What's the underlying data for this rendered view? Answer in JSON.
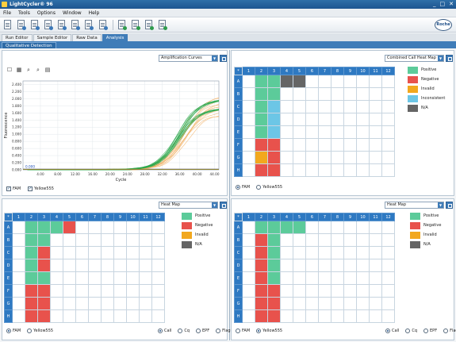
{
  "titlebar": {
    "title": "LightCycler® 96",
    "min": "_",
    "max": "□",
    "close": "✕"
  },
  "menu": [
    "File",
    "Tools",
    "Options",
    "Window",
    "Help"
  ],
  "brand": "Roche",
  "module_tabs": [
    "Run Editor",
    "Sample Editor",
    "Raw Data",
    "Analysis"
  ],
  "active_module": "Analysis",
  "sub_tab": "Qualitative Detection",
  "colors": {
    "positive": "#5ccb9a",
    "negative": "#e8524c",
    "invalid": "#f2a81e",
    "inconsistent": "#6cc6e6",
    "na": "#656565",
    "header": "#2e79c2"
  },
  "chart_panel": {
    "dropdown": "Amplification Curves",
    "tools": [
      "☐",
      "▦",
      "⌕",
      "⌕",
      "▤"
    ],
    "checkbox_fam": "FAM",
    "checkbox_yellow": "Yellow555"
  },
  "chart_data": {
    "type": "line",
    "xlabel": "Cycle",
    "ylabel": "Fluorescence",
    "xlim": [
      0,
      45
    ],
    "ylim": [
      0,
      2.5
    ],
    "xticks": [
      "4.00",
      "8.00",
      "12.00",
      "16.00",
      "20.00",
      "24.00",
      "28.00",
      "32.00",
      "36.00",
      "40.00",
      "44.00"
    ],
    "yticks": [
      "0.000",
      "0.200",
      "0.400",
      "0.600",
      "0.800",
      "1.000",
      "1.200",
      "1.400",
      "1.600",
      "1.800",
      "2.000",
      "2.200",
      "2.400"
    ],
    "threshold_label": "0.000",
    "curve_count_green": 14,
    "curve_count_orange": 12,
    "series": [
      {
        "name": "FAM",
        "color": "#2fa84f",
        "plateau_range": [
          1.55,
          2.05
        ],
        "midpoint_range": [
          35.3,
          36.2
        ]
      },
      {
        "name": "Yellow555",
        "color": "#f2b46a",
        "plateau_range": [
          1.55,
          2.15
        ],
        "midpoint_range": [
          36.0,
          37.8
        ]
      }
    ]
  },
  "plate_cols": [
    "*",
    "1",
    "2",
    "3",
    "4",
    "5",
    "6",
    "7",
    "8",
    "9",
    "10",
    "11",
    "12"
  ],
  "plate_rows": [
    "A",
    "B",
    "C",
    "D",
    "E",
    "F",
    "G",
    "H"
  ],
  "panel_top_right": {
    "dropdown": "Combined Call Heat Map",
    "wells": {
      "A": {
        "2": "positive",
        "3": "positive",
        "4": "na",
        "5": "na"
      },
      "B": {
        "2": "positive",
        "3": "positive"
      },
      "C": {
        "2": "positive",
        "3": "inconsistent"
      },
      "D": {
        "2": "positive",
        "3": "inconsistent"
      },
      "E": {
        "2": "positive",
        "3": "inconsistent"
      },
      "F": {
        "2": "negative",
        "3": "negative"
      },
      "G": {
        "2": "invalid",
        "3": "negative"
      },
      "H": {
        "2": "negative",
        "3": "negative"
      }
    },
    "legend": [
      {
        "key": "positive",
        "label": "Positive"
      },
      {
        "key": "negative",
        "label": "Negative"
      },
      {
        "key": "invalid",
        "label": "Invalid"
      },
      {
        "key": "inconsistent",
        "label": "Inconsistent"
      },
      {
        "key": "na",
        "label": "N/A"
      }
    ],
    "radio_fam": "FAM",
    "radio_yellow": "Yellow555",
    "selected": "FAM"
  },
  "panel_bottom_left": {
    "dropdown": "Heat Map",
    "wells": {
      "A": {
        "2": "positive",
        "3": "positive",
        "4": "positive",
        "5": "negative"
      },
      "B": {
        "2": "positive",
        "3": "positive"
      },
      "C": {
        "2": "positive",
        "3": "negative"
      },
      "D": {
        "2": "positive",
        "3": "negative"
      },
      "E": {
        "2": "positive",
        "3": "positive"
      },
      "F": {
        "2": "negative",
        "3": "negative"
      },
      "G": {
        "2": "negative",
        "3": "negative"
      },
      "H": {
        "2": "negative",
        "3": "negative"
      }
    },
    "legend": [
      {
        "key": "positive",
        "label": "Positive"
      },
      {
        "key": "negative",
        "label": "Negative"
      },
      {
        "key": "invalid",
        "label": "Invalid"
      },
      {
        "key": "na",
        "label": "N/A"
      }
    ],
    "radio_fam": "FAM",
    "radio_yellow": "Yellow555",
    "selected": "FAM",
    "calc_options": [
      "Call",
      "Cq",
      "EPF",
      "Flag"
    ],
    "calc_selected": "Call"
  },
  "panel_bottom_right": {
    "dropdown": "Heat Map",
    "wells": {
      "A": {
        "2": "positive",
        "3": "positive",
        "4": "positive",
        "5": "positive"
      },
      "B": {
        "2": "negative",
        "3": "positive"
      },
      "C": {
        "2": "negative",
        "3": "positive"
      },
      "D": {
        "2": "negative",
        "3": "positive"
      },
      "E": {
        "2": "negative",
        "3": "positive"
      },
      "F": {
        "2": "negative",
        "3": "negative"
      },
      "G": {
        "2": "negative",
        "3": "negative"
      },
      "H": {
        "2": "negative",
        "3": "negative"
      }
    },
    "legend": [
      {
        "key": "positive",
        "label": "Positive"
      },
      {
        "key": "negative",
        "label": "Negative"
      },
      {
        "key": "invalid",
        "label": "Invalid"
      },
      {
        "key": "na",
        "label": "N/A"
      }
    ],
    "radio_fam": "FAM",
    "radio_yellow": "Yellow555",
    "selected": "Yellow555",
    "calc_options": [
      "Call",
      "Cq",
      "EPF",
      "Flag"
    ],
    "calc_selected": "Call"
  }
}
